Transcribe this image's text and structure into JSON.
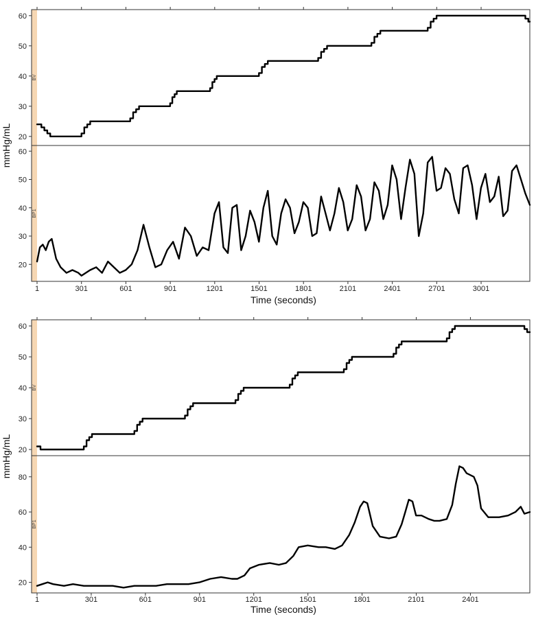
{
  "colors": {
    "strip": "#f6d7b3",
    "line": "#000000",
    "frame": "#333333"
  },
  "chart_data": [
    {
      "type": "line",
      "xlabel": "Time (seconds)",
      "ylabel": "mmHg/mL",
      "xticks": [
        1,
        301,
        601,
        901,
        1201,
        1501,
        1801,
        2101,
        2401,
        2701,
        3001
      ],
      "xlim": [
        1,
        3330
      ],
      "panels": [
        {
          "strip_label": "BV",
          "ylim": [
            17,
            62
          ],
          "yticks": [
            20,
            30,
            40,
            50,
            60
          ],
          "x": [
            1,
            30,
            30,
            50,
            50,
            70,
            70,
            90,
            90,
            301,
            301,
            320,
            320,
            340,
            340,
            360,
            360,
            630,
            630,
            650,
            650,
            670,
            670,
            690,
            690,
            900,
            900,
            915,
            915,
            930,
            930,
            945,
            945,
            1170,
            1170,
            1185,
            1185,
            1200,
            1200,
            1215,
            1215,
            1500,
            1500,
            1520,
            1520,
            1540,
            1540,
            1560,
            1560,
            1900,
            1900,
            1920,
            1920,
            1940,
            1940,
            1960,
            1960,
            2260,
            2260,
            2280,
            2280,
            2300,
            2300,
            2320,
            2320,
            2640,
            2640,
            2660,
            2660,
            2680,
            2680,
            2700,
            2700,
            3300,
            3300,
            3320,
            3320,
            3330
          ],
          "y": [
            24,
            24,
            23,
            23,
            22,
            22,
            21,
            21,
            20,
            20,
            21,
            21,
            23,
            23,
            24,
            24,
            25,
            25,
            26,
            26,
            28,
            28,
            29,
            29,
            30,
            30,
            31,
            31,
            33,
            33,
            34,
            34,
            35,
            35,
            36,
            36,
            38,
            38,
            39,
            39,
            40,
            40,
            41,
            41,
            43,
            43,
            44,
            44,
            45,
            45,
            46,
            46,
            48,
            48,
            49,
            49,
            50,
            50,
            51,
            51,
            53,
            53,
            54,
            54,
            55,
            55,
            56,
            56,
            58,
            58,
            59,
            59,
            60,
            60,
            59,
            59,
            58,
            58
          ]
        },
        {
          "strip_label": "BP1",
          "ylim": [
            14,
            62
          ],
          "yticks": [
            20,
            30,
            40,
            50,
            60
          ],
          "x": [
            1,
            20,
            40,
            60,
            80,
            100,
            130,
            160,
            200,
            240,
            280,
            301,
            330,
            360,
            400,
            440,
            480,
            520,
            560,
            600,
            640,
            680,
            720,
            760,
            800,
            840,
            880,
            920,
            960,
            1000,
            1040,
            1080,
            1120,
            1160,
            1200,
            1230,
            1260,
            1290,
            1320,
            1350,
            1380,
            1410,
            1440,
            1470,
            1500,
            1530,
            1560,
            1590,
            1620,
            1650,
            1680,
            1710,
            1740,
            1770,
            1800,
            1830,
            1860,
            1890,
            1920,
            1950,
            1980,
            2010,
            2040,
            2070,
            2100,
            2130,
            2160,
            2190,
            2220,
            2250,
            2280,
            2310,
            2340,
            2370,
            2400,
            2430,
            2460,
            2490,
            2520,
            2550,
            2580,
            2610,
            2640,
            2670,
            2700,
            2730,
            2760,
            2790,
            2820,
            2850,
            2880,
            2910,
            2940,
            2970,
            3000,
            3030,
            3060,
            3090,
            3120,
            3150,
            3180,
            3210,
            3240,
            3270,
            3300,
            3330
          ],
          "y": [
            21,
            26,
            27,
            25,
            28,
            29,
            22,
            19,
            17,
            18,
            17,
            16,
            17,
            18,
            19,
            17,
            21,
            19,
            17,
            18,
            20,
            25,
            34,
            26,
            19,
            20,
            25,
            28,
            22,
            33,
            30,
            23,
            26,
            25,
            38,
            42,
            26,
            24,
            40,
            41,
            25,
            30,
            39,
            35,
            28,
            40,
            46,
            30,
            27,
            38,
            43,
            40,
            31,
            35,
            42,
            40,
            30,
            31,
            44,
            38,
            32,
            38,
            47,
            42,
            32,
            36,
            48,
            44,
            32,
            36,
            49,
            46,
            36,
            41,
            55,
            50,
            36,
            47,
            57,
            52,
            30,
            38,
            56,
            58,
            46,
            47,
            54,
            52,
            43,
            38,
            54,
            55,
            48,
            36,
            47,
            52,
            42,
            44,
            51,
            37,
            39,
            53,
            55,
            50,
            45,
            41
          ]
        }
      ]
    },
    {
      "type": "line",
      "xlabel": "Time (seconds)",
      "ylabel": "mmHg/mL",
      "xticks": [
        1,
        301,
        601,
        901,
        1201,
        1501,
        1801,
        2101,
        2401
      ],
      "xlim": [
        1,
        2730
      ],
      "panels": [
        {
          "strip_label": "BV",
          "ylim": [
            18,
            62
          ],
          "yticks": [
            20,
            30,
            40,
            50,
            60
          ],
          "x": [
            1,
            20,
            20,
            260,
            260,
            275,
            275,
            290,
            290,
            305,
            305,
            540,
            540,
            555,
            555,
            570,
            570,
            585,
            585,
            820,
            820,
            835,
            835,
            850,
            850,
            865,
            865,
            1100,
            1100,
            1115,
            1115,
            1130,
            1130,
            1145,
            1145,
            1400,
            1400,
            1415,
            1415,
            1430,
            1430,
            1445,
            1445,
            1700,
            1700,
            1715,
            1715,
            1730,
            1730,
            1745,
            1745,
            1975,
            1975,
            1990,
            1990,
            2005,
            2005,
            2020,
            2020,
            2270,
            2270,
            2285,
            2285,
            2300,
            2300,
            2315,
            2315,
            2700,
            2700,
            2715,
            2715,
            2730
          ],
          "y": [
            21,
            21,
            20,
            20,
            21,
            21,
            23,
            23,
            24,
            24,
            25,
            25,
            26,
            26,
            28,
            28,
            29,
            29,
            30,
            30,
            31,
            31,
            33,
            33,
            34,
            34,
            35,
            35,
            36,
            36,
            38,
            38,
            39,
            39,
            40,
            40,
            41,
            41,
            43,
            43,
            44,
            44,
            45,
            45,
            46,
            46,
            48,
            48,
            49,
            49,
            50,
            50,
            51,
            51,
            53,
            53,
            54,
            54,
            55,
            55,
            56,
            56,
            58,
            58,
            59,
            59,
            60,
            60,
            59,
            59,
            58,
            58
          ]
        },
        {
          "strip_label": "BP1",
          "ylim": [
            14,
            92
          ],
          "yticks": [
            20,
            40,
            60,
            80
          ],
          "x": [
            1,
            30,
            60,
            90,
            150,
            200,
            260,
            300,
            360,
            420,
            480,
            540,
            600,
            660,
            720,
            780,
            840,
            900,
            960,
            1020,
            1080,
            1110,
            1150,
            1180,
            1230,
            1290,
            1340,
            1380,
            1420,
            1450,
            1500,
            1560,
            1600,
            1650,
            1690,
            1730,
            1760,
            1790,
            1810,
            1830,
            1860,
            1900,
            1950,
            1990,
            2020,
            2040,
            2060,
            2080,
            2100,
            2130,
            2170,
            2200,
            2230,
            2270,
            2300,
            2320,
            2340,
            2360,
            2380,
            2400,
            2420,
            2440,
            2460,
            2500,
            2560,
            2610,
            2650,
            2680,
            2700,
            2730
          ],
          "y": [
            18,
            19,
            20,
            19,
            18,
            19,
            18,
            18,
            18,
            18,
            17,
            18,
            18,
            18,
            19,
            19,
            19,
            20,
            22,
            23,
            22,
            22,
            24,
            28,
            30,
            31,
            30,
            31,
            35,
            40,
            41,
            40,
            40,
            39,
            41,
            47,
            54,
            63,
            66,
            65,
            52,
            46,
            45,
            46,
            53,
            60,
            67,
            66,
            58,
            58,
            56,
            55,
            55,
            56,
            64,
            76,
            86,
            85,
            82,
            81,
            80,
            75,
            62,
            57,
            57,
            58,
            60,
            63,
            59,
            60
          ]
        }
      ]
    }
  ]
}
